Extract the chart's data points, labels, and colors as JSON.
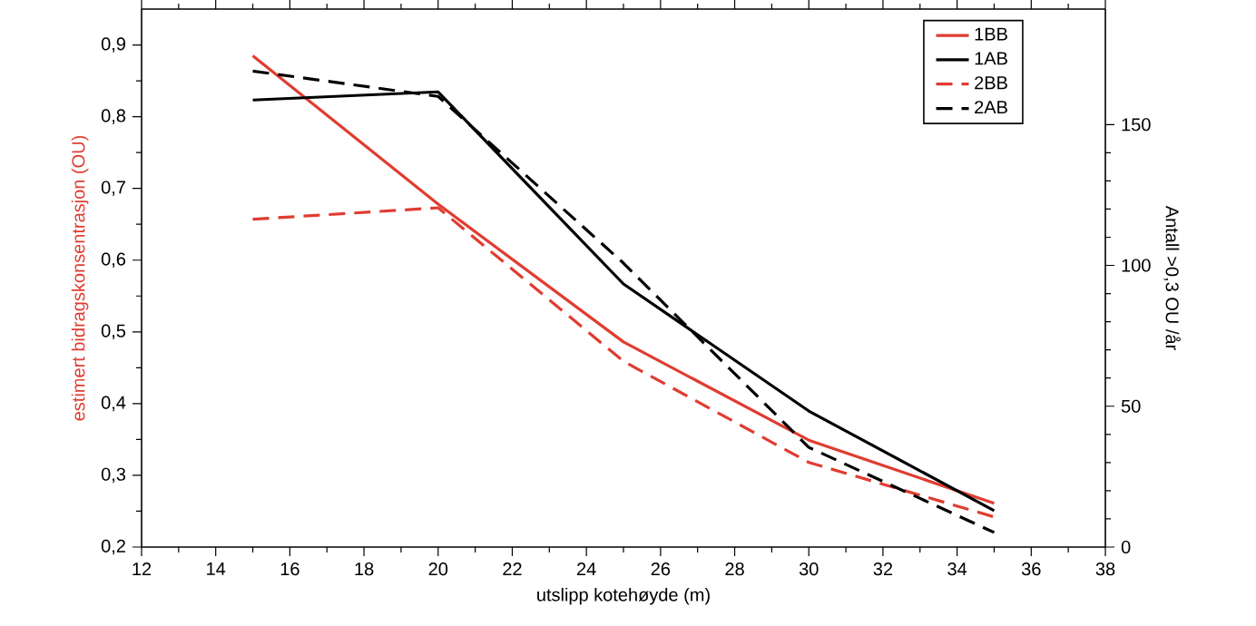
{
  "chart_data": {
    "type": "line",
    "xlabel": "utslipp kotehøyde (m)",
    "ylabel": "estimert bidragskonsentrasjon (OU)",
    "y2label": "Antall >0,3 OU /år",
    "x": [
      15,
      20,
      25,
      30,
      35
    ],
    "series": [
      {
        "name": "1BB",
        "color": "#e03c31",
        "line_style": "solid",
        "values": [
          0.885,
          0.678,
          0.486,
          0.349,
          0.261
        ]
      },
      {
        "name": "1AB",
        "color": "#000000",
        "line_style": "solid",
        "axis": "y2",
        "values": [
          158.7,
          161.6,
          93.4,
          48.3,
          12.9
        ]
      },
      {
        "name": "2BB",
        "color": "#e03c31",
        "line_style": "dashed",
        "values": [
          0.657,
          0.673,
          0.459,
          0.318,
          0.242
        ]
      },
      {
        "name": "2AB",
        "color": "#000000",
        "line_style": "dashed",
        "axis": "y2",
        "values": [
          169,
          160,
          100.8,
          35.4,
          5.2
        ]
      }
    ],
    "xlim": [
      12,
      38
    ],
    "xticks": [
      12,
      14,
      16,
      18,
      20,
      22,
      24,
      26,
      28,
      30,
      32,
      34,
      36,
      38
    ],
    "ylim": [
      0.2,
      0.95
    ],
    "yticks": [
      {
        "value": 0.2,
        "label": "0,2"
      },
      {
        "value": 0.3,
        "label": "0,3"
      },
      {
        "value": 0.4,
        "label": "0,4"
      },
      {
        "value": 0.5,
        "label": "0,5"
      },
      {
        "value": 0.6,
        "label": "0,6"
      },
      {
        "value": 0.7,
        "label": "0,7"
      },
      {
        "value": 0.8,
        "label": "0,8"
      },
      {
        "value": 0.9,
        "label": "0,9"
      }
    ],
    "y2lim": [
      0,
      191
    ],
    "y2ticks": [
      0,
      50,
      100,
      150
    ],
    "legend": "top right",
    "grid": false,
    "marker": "none"
  }
}
